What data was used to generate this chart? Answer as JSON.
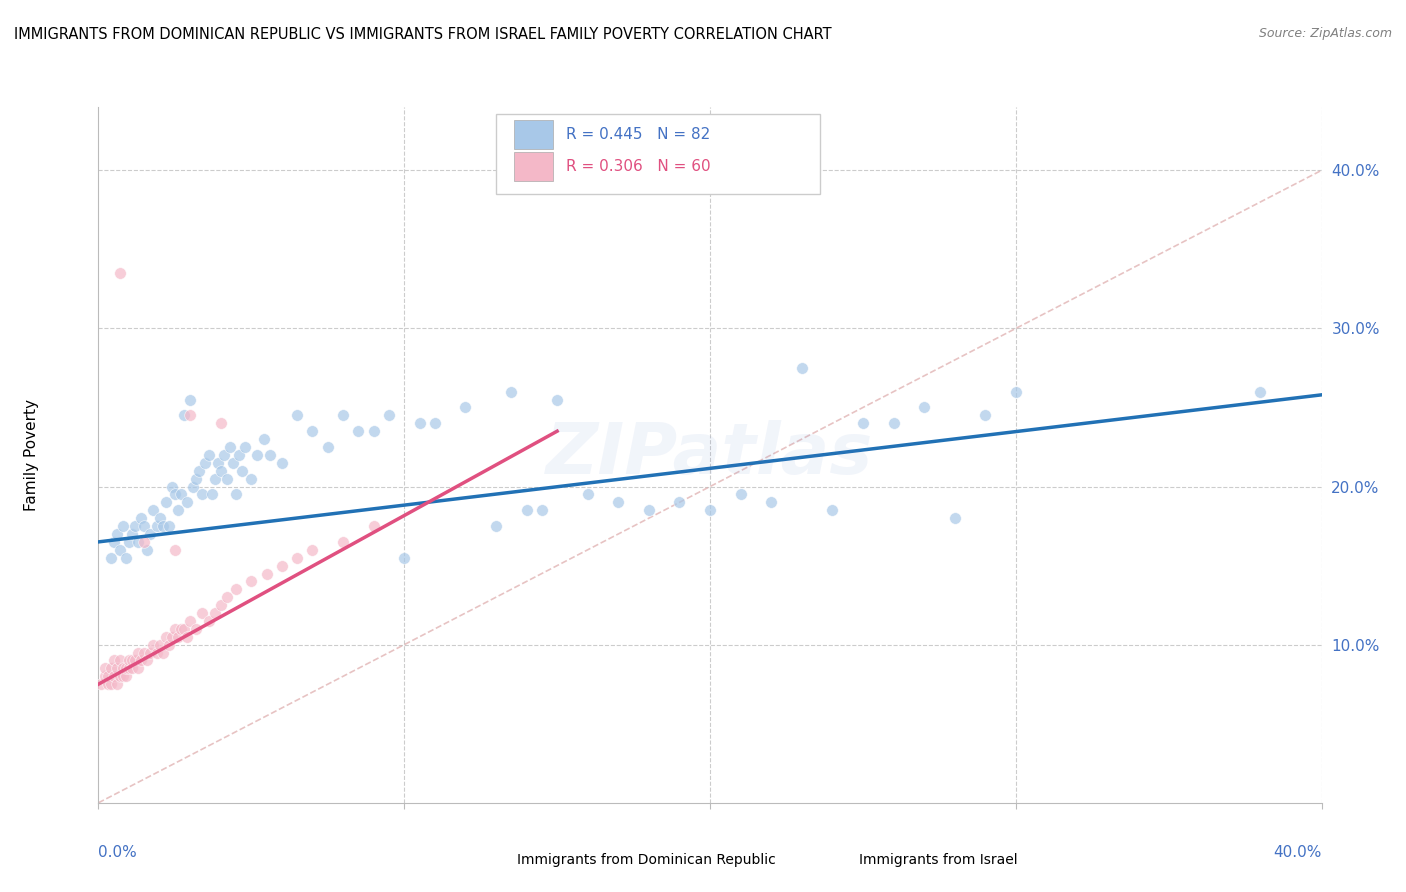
{
  "title": "IMMIGRANTS FROM DOMINICAN REPUBLIC VS IMMIGRANTS FROM ISRAEL FAMILY POVERTY CORRELATION CHART",
  "source": "Source: ZipAtlas.com",
  "ylabel": "Family Poverty",
  "legend_blue_label": "Immigrants from Dominican Republic",
  "legend_pink_label": "Immigrants from Israel",
  "watermark": "ZIPatlas",
  "blue_color": "#a8c8e8",
  "pink_color": "#f4b8c8",
  "blue_line_color": "#2171b5",
  "pink_line_color": "#e05080",
  "dashed_line_color": "#cccccc",
  "axis_color": "#4472c4",
  "xlim": [
    0.0,
    0.4
  ],
  "ylim": [
    0.0,
    0.44
  ],
  "blue_scatter": [
    [
      0.004,
      0.155
    ],
    [
      0.005,
      0.165
    ],
    [
      0.006,
      0.17
    ],
    [
      0.007,
      0.16
    ],
    [
      0.008,
      0.175
    ],
    [
      0.009,
      0.155
    ],
    [
      0.01,
      0.165
    ],
    [
      0.011,
      0.17
    ],
    [
      0.012,
      0.175
    ],
    [
      0.013,
      0.165
    ],
    [
      0.014,
      0.18
    ],
    [
      0.015,
      0.175
    ],
    [
      0.016,
      0.16
    ],
    [
      0.017,
      0.17
    ],
    [
      0.018,
      0.185
    ],
    [
      0.019,
      0.175
    ],
    [
      0.02,
      0.18
    ],
    [
      0.021,
      0.175
    ],
    [
      0.022,
      0.19
    ],
    [
      0.023,
      0.175
    ],
    [
      0.024,
      0.2
    ],
    [
      0.025,
      0.195
    ],
    [
      0.026,
      0.185
    ],
    [
      0.027,
      0.195
    ],
    [
      0.028,
      0.245
    ],
    [
      0.029,
      0.19
    ],
    [
      0.03,
      0.255
    ],
    [
      0.031,
      0.2
    ],
    [
      0.032,
      0.205
    ],
    [
      0.033,
      0.21
    ],
    [
      0.034,
      0.195
    ],
    [
      0.035,
      0.215
    ],
    [
      0.036,
      0.22
    ],
    [
      0.037,
      0.195
    ],
    [
      0.038,
      0.205
    ],
    [
      0.039,
      0.215
    ],
    [
      0.04,
      0.21
    ],
    [
      0.041,
      0.22
    ],
    [
      0.042,
      0.205
    ],
    [
      0.043,
      0.225
    ],
    [
      0.044,
      0.215
    ],
    [
      0.045,
      0.195
    ],
    [
      0.046,
      0.22
    ],
    [
      0.047,
      0.21
    ],
    [
      0.048,
      0.225
    ],
    [
      0.05,
      0.205
    ],
    [
      0.052,
      0.22
    ],
    [
      0.054,
      0.23
    ],
    [
      0.056,
      0.22
    ],
    [
      0.06,
      0.215
    ],
    [
      0.065,
      0.245
    ],
    [
      0.07,
      0.235
    ],
    [
      0.075,
      0.225
    ],
    [
      0.08,
      0.245
    ],
    [
      0.085,
      0.235
    ],
    [
      0.09,
      0.235
    ],
    [
      0.095,
      0.245
    ],
    [
      0.1,
      0.155
    ],
    [
      0.105,
      0.24
    ],
    [
      0.11,
      0.24
    ],
    [
      0.12,
      0.25
    ],
    [
      0.13,
      0.175
    ],
    [
      0.135,
      0.26
    ],
    [
      0.14,
      0.185
    ],
    [
      0.145,
      0.185
    ],
    [
      0.15,
      0.255
    ],
    [
      0.16,
      0.195
    ],
    [
      0.17,
      0.19
    ],
    [
      0.18,
      0.185
    ],
    [
      0.19,
      0.19
    ],
    [
      0.2,
      0.185
    ],
    [
      0.21,
      0.195
    ],
    [
      0.22,
      0.19
    ],
    [
      0.23,
      0.275
    ],
    [
      0.24,
      0.185
    ],
    [
      0.25,
      0.24
    ],
    [
      0.26,
      0.24
    ],
    [
      0.27,
      0.25
    ],
    [
      0.28,
      0.18
    ],
    [
      0.29,
      0.245
    ],
    [
      0.3,
      0.26
    ],
    [
      0.38,
      0.26
    ]
  ],
  "pink_scatter": [
    [
      0.001,
      0.075
    ],
    [
      0.002,
      0.08
    ],
    [
      0.002,
      0.085
    ],
    [
      0.003,
      0.075
    ],
    [
      0.003,
      0.08
    ],
    [
      0.004,
      0.075
    ],
    [
      0.004,
      0.085
    ],
    [
      0.005,
      0.08
    ],
    [
      0.005,
      0.09
    ],
    [
      0.006,
      0.075
    ],
    [
      0.006,
      0.085
    ],
    [
      0.007,
      0.08
    ],
    [
      0.007,
      0.09
    ],
    [
      0.008,
      0.08
    ],
    [
      0.008,
      0.085
    ],
    [
      0.009,
      0.08
    ],
    [
      0.009,
      0.085
    ],
    [
      0.01,
      0.085
    ],
    [
      0.01,
      0.09
    ],
    [
      0.011,
      0.085
    ],
    [
      0.011,
      0.09
    ],
    [
      0.012,
      0.09
    ],
    [
      0.013,
      0.085
    ],
    [
      0.013,
      0.095
    ],
    [
      0.014,
      0.09
    ],
    [
      0.015,
      0.095
    ],
    [
      0.016,
      0.09
    ],
    [
      0.017,
      0.095
    ],
    [
      0.018,
      0.1
    ],
    [
      0.019,
      0.095
    ],
    [
      0.02,
      0.1
    ],
    [
      0.021,
      0.095
    ],
    [
      0.022,
      0.105
    ],
    [
      0.023,
      0.1
    ],
    [
      0.024,
      0.105
    ],
    [
      0.025,
      0.11
    ],
    [
      0.026,
      0.105
    ],
    [
      0.027,
      0.11
    ],
    [
      0.028,
      0.11
    ],
    [
      0.029,
      0.105
    ],
    [
      0.03,
      0.115
    ],
    [
      0.032,
      0.11
    ],
    [
      0.034,
      0.12
    ],
    [
      0.036,
      0.115
    ],
    [
      0.038,
      0.12
    ],
    [
      0.04,
      0.125
    ],
    [
      0.042,
      0.13
    ],
    [
      0.045,
      0.135
    ],
    [
      0.05,
      0.14
    ],
    [
      0.055,
      0.145
    ],
    [
      0.06,
      0.15
    ],
    [
      0.065,
      0.155
    ],
    [
      0.007,
      0.335
    ],
    [
      0.07,
      0.16
    ],
    [
      0.08,
      0.165
    ],
    [
      0.09,
      0.175
    ],
    [
      0.03,
      0.245
    ],
    [
      0.025,
      0.16
    ],
    [
      0.04,
      0.24
    ],
    [
      0.015,
      0.165
    ]
  ],
  "blue_line_x0": 0.0,
  "blue_line_y0": 0.165,
  "blue_line_x1": 0.4,
  "blue_line_y1": 0.258,
  "pink_line_x0": 0.0,
  "pink_line_y0": 0.075,
  "pink_line_x1": 0.15,
  "pink_line_y1": 0.235
}
